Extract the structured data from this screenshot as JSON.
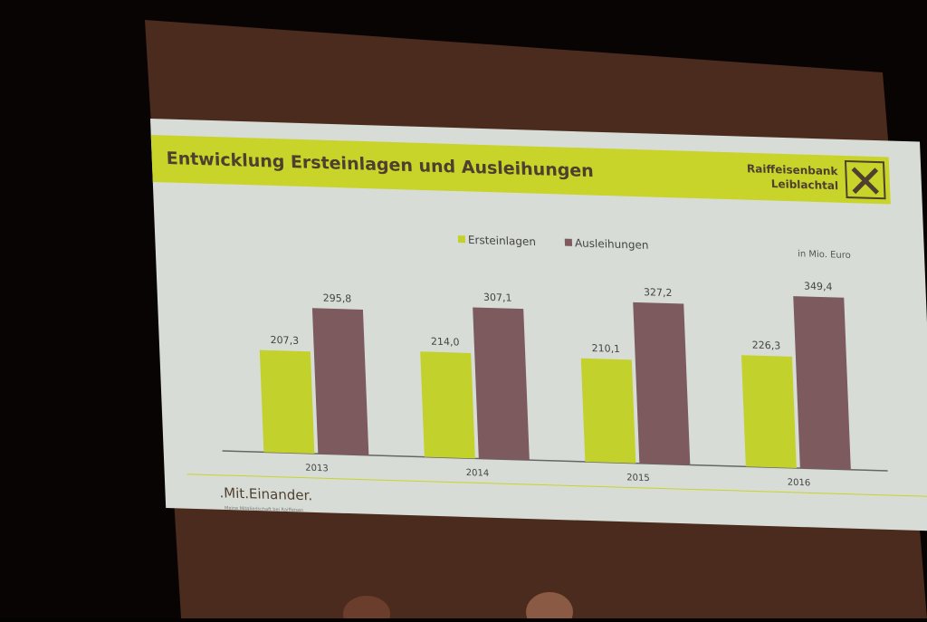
{
  "chart_data": {
    "type": "bar",
    "title": "Entwicklung Ersteinlagen und Ausleihungen",
    "brand": [
      "Raiffeisenbank",
      "Leiblachtal"
    ],
    "unit_note": "in Mio. Euro",
    "footer": ".Mit.Einander.",
    "footer_sub": "Meine Mitgliedschaft bei Raiffeisen",
    "categories": [
      "2013",
      "2014",
      "2015",
      "2016"
    ],
    "series": [
      {
        "name": "Ersteinlagen",
        "color": "#c3d12c",
        "values": [
          207.3,
          214.0,
          210.1,
          226.3
        ],
        "value_labels": [
          "207,3",
          "214,0",
          "210,1",
          "226,3"
        ]
      },
      {
        "name": "Ausleihungen",
        "color": "#7c5a5e",
        "values": [
          295.8,
          307.1,
          327.2,
          349.4
        ],
        "value_labels": [
          "295,8",
          "307,1",
          "327,2",
          "349,4"
        ]
      }
    ]
  }
}
